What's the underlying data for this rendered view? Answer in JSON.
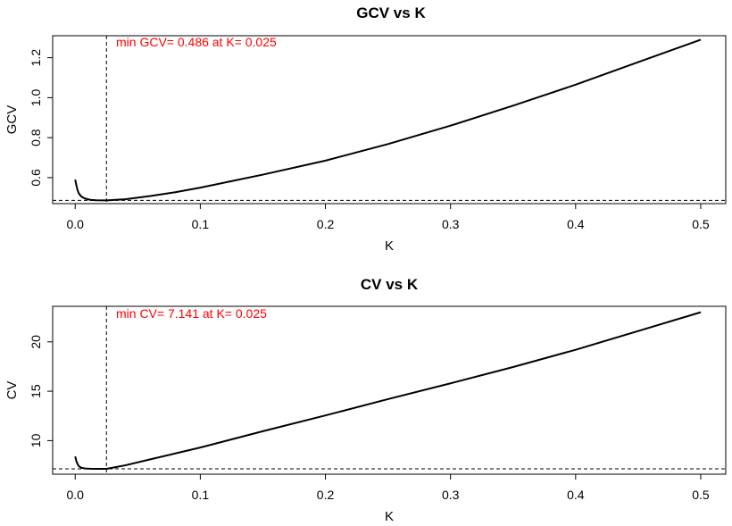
{
  "chart_data": [
    {
      "type": "line",
      "title": "GCV vs K",
      "xlabel": "K",
      "ylabel": "GCV",
      "xlim": [
        -0.018,
        0.52
      ],
      "ylim": [
        0.47,
        1.31
      ],
      "x_ticks": [
        "0.0",
        "0.1",
        "0.2",
        "0.3",
        "0.4",
        "0.5"
      ],
      "y_ticks": [
        "0.6",
        "0.8",
        "1.0",
        "1.2"
      ],
      "annotation": "min GCV= 0.486  at K= 0.025",
      "min_value": 0.486,
      "min_k": 0.025,
      "series": [
        {
          "x": [
            0.0,
            0.001,
            0.002,
            0.003,
            0.005,
            0.008,
            0.012,
            0.017,
            0.025,
            0.04,
            0.06,
            0.08,
            0.1,
            0.15,
            0.2,
            0.25,
            0.3,
            0.35,
            0.4,
            0.45,
            0.5
          ],
          "values": [
            0.59,
            0.56,
            0.535,
            0.52,
            0.505,
            0.495,
            0.489,
            0.487,
            0.486,
            0.492,
            0.508,
            0.527,
            0.55,
            0.615,
            0.685,
            0.768,
            0.86,
            0.96,
            1.065,
            1.178,
            1.29
          ]
        }
      ]
    },
    {
      "type": "line",
      "title": "CV vs K",
      "xlabel": "K",
      "ylabel": "CV",
      "xlim": [
        -0.018,
        0.52
      ],
      "ylim": [
        6.6,
        23.6
      ],
      "x_ticks": [
        "0.0",
        "0.1",
        "0.2",
        "0.3",
        "0.4",
        "0.5"
      ],
      "y_ticks": [
        "10",
        "15",
        "20"
      ],
      "annotation": "min CV= 7.141  at K= 0.025",
      "min_value": 7.141,
      "min_k": 0.025,
      "series": [
        {
          "x": [
            0.0,
            0.001,
            0.002,
            0.003,
            0.005,
            0.008,
            0.012,
            0.017,
            0.025,
            0.04,
            0.06,
            0.08,
            0.1,
            0.15,
            0.2,
            0.25,
            0.3,
            0.35,
            0.4,
            0.45,
            0.5
          ],
          "values": [
            8.4,
            7.9,
            7.6,
            7.4,
            7.25,
            7.18,
            7.15,
            7.142,
            7.141,
            7.5,
            8.1,
            8.7,
            9.3,
            10.95,
            12.55,
            14.2,
            15.8,
            17.45,
            19.2,
            21.1,
            23.0
          ]
        }
      ]
    }
  ]
}
